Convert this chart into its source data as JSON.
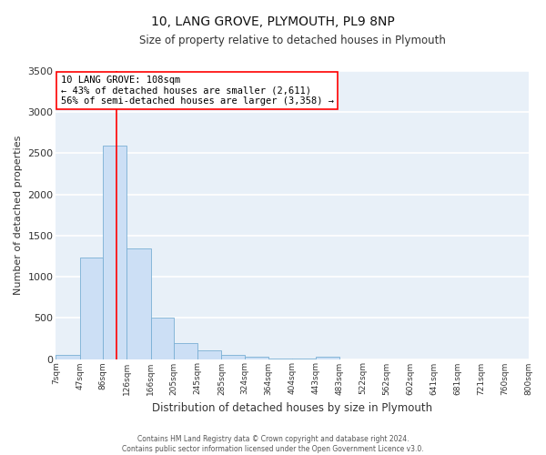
{
  "title": "10, LANG GROVE, PLYMOUTH, PL9 8NP",
  "subtitle": "Size of property relative to detached houses in Plymouth",
  "xlabel": "Distribution of detached houses by size in Plymouth",
  "ylabel": "Number of detached properties",
  "annotation_line1": "10 LANG GROVE: 108sqm",
  "annotation_line2": "← 43% of detached houses are smaller (2,611)",
  "annotation_line3": "56% of semi-detached houses are larger (3,358) →",
  "property_size": 108,
  "bin_edges": [
    7,
    47,
    86,
    126,
    166,
    205,
    245,
    285,
    324,
    364,
    404,
    443,
    483,
    522,
    562,
    602,
    641,
    681,
    721,
    760,
    800
  ],
  "bin_labels": [
    "7sqm",
    "47sqm",
    "86sqm",
    "126sqm",
    "166sqm",
    "205sqm",
    "245sqm",
    "285sqm",
    "324sqm",
    "364sqm",
    "404sqm",
    "443sqm",
    "483sqm",
    "522sqm",
    "562sqm",
    "602sqm",
    "641sqm",
    "681sqm",
    "721sqm",
    "760sqm",
    "800sqm"
  ],
  "bar_heights": [
    50,
    1230,
    2590,
    1340,
    500,
    195,
    110,
    50,
    25,
    10,
    5,
    25,
    0,
    0,
    0,
    0,
    0,
    0,
    0,
    0
  ],
  "bar_color": "#ccdff5",
  "bar_edge_color": "#7aafd4",
  "vline_x": 108,
  "vline_color": "red",
  "ylim": [
    0,
    3500
  ],
  "yticks": [
    0,
    500,
    1000,
    1500,
    2000,
    2500,
    3000,
    3500
  ],
  "background_color": "#e8f0f8",
  "grid_color": "white",
  "annotation_box_edge": "red",
  "footer_line1": "Contains HM Land Registry data © Crown copyright and database right 2024.",
  "footer_line2": "Contains public sector information licensed under the Open Government Licence v3.0."
}
